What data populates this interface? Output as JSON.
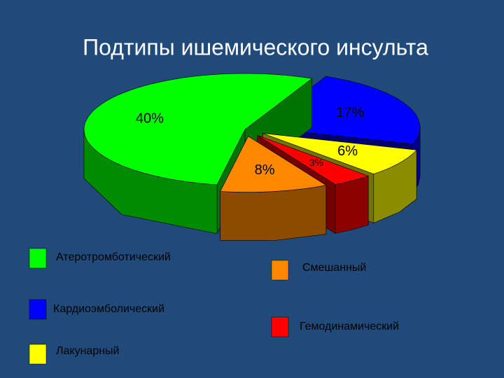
{
  "chart_data": {
    "type": "pie3d",
    "title": "Подтипы ишемического инсульта",
    "categories": [
      "Атеротромботический",
      "Кардиоэмболический",
      "Лакунарный",
      "Гемодинамический",
      "Смешанный"
    ],
    "values": [
      40,
      17,
      6,
      3,
      8
    ],
    "value_labels": [
      "40%",
      "17%",
      "6%",
      "3%",
      "8%"
    ],
    "colors": [
      "#00ff00",
      "#0000ff",
      "#ffff00",
      "#ff0000",
      "#ff8800"
    ]
  }
}
